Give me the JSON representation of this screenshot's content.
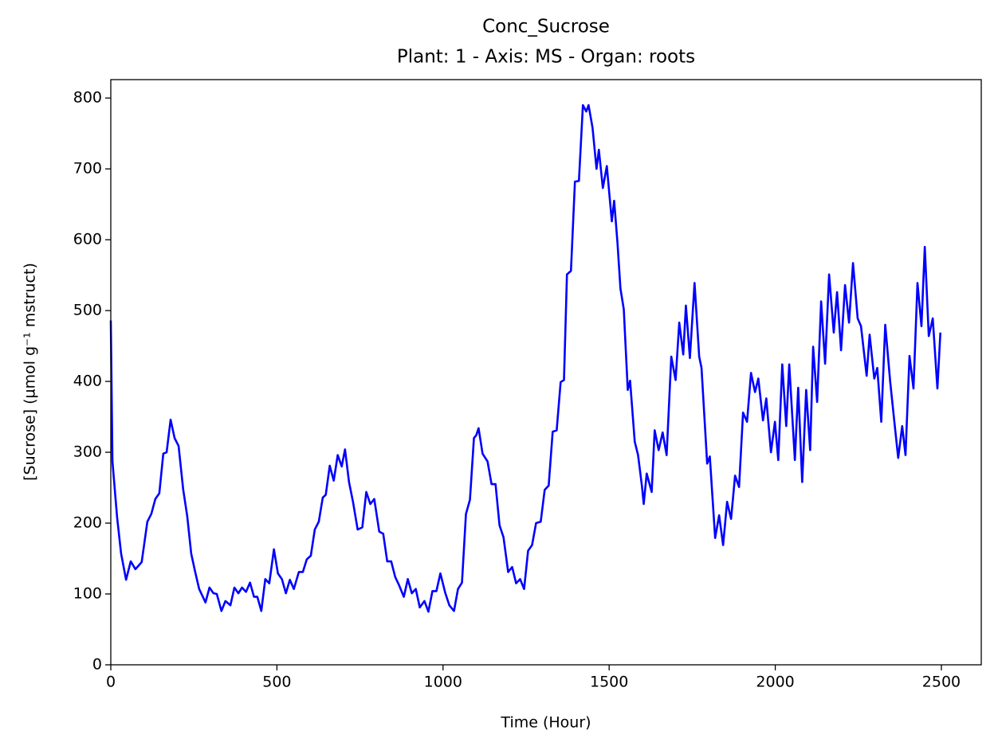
{
  "chart_data": {
    "type": "line",
    "title": "Conc_Sucrose",
    "subtitle": "Plant: 1 - Axis: MS - Organ: roots",
    "x_label": "Time (Hour)",
    "y_label": "[Sucrose] (µmol g⁻¹ mstruct)",
    "x": [
      0,
      5,
      19,
      31,
      46,
      60,
      74,
      93,
      110,
      122,
      134,
      146,
      158,
      168,
      180,
      192,
      204,
      218,
      230,
      242,
      254,
      266,
      285,
      297,
      309,
      319,
      333,
      345,
      360,
      372,
      384,
      395,
      407,
      419,
      431,
      441,
      453,
      465,
      477,
      491,
      503,
      515,
      527,
      539,
      551,
      566,
      578,
      590,
      602,
      614,
      626,
      638,
      647,
      659,
      671,
      683,
      695,
      705,
      717,
      729,
      743,
      757,
      769,
      781,
      793,
      808,
      820,
      832,
      844,
      856,
      868,
      882,
      894,
      906,
      918,
      930,
      944,
      956,
      968,
      980,
      992,
      1007,
      1019,
      1033,
      1045,
      1057,
      1069,
      1081,
      1093,
      1100,
      1107,
      1119,
      1134,
      1146,
      1158,
      1170,
      1182,
      1196,
      1208,
      1220,
      1232,
      1244,
      1256,
      1268,
      1280,
      1294,
      1306,
      1318,
      1330,
      1342,
      1354,
      1364,
      1373,
      1385,
      1397,
      1409,
      1421,
      1431,
      1438,
      1450,
      1462,
      1469,
      1481,
      1493,
      1508,
      1515,
      1525,
      1534,
      1544,
      1556,
      1563,
      1577,
      1587,
      1599,
      1604,
      1613,
      1628,
      1637,
      1649,
      1661,
      1673,
      1687,
      1700,
      1711,
      1723,
      1731,
      1743,
      1757,
      1771,
      1778,
      1795,
      1803,
      1819,
      1831,
      1843,
      1855,
      1867,
      1879,
      1891,
      1903,
      1915,
      1927,
      1939,
      1949,
      1963,
      1973,
      1987,
      1999,
      2009,
      2021,
      2033,
      2042,
      2059,
      2069,
      2081,
      2093,
      2105,
      2114,
      2126,
      2138,
      2150,
      2162,
      2176,
      2186,
      2198,
      2210,
      2222,
      2234,
      2248,
      2258,
      2275,
      2284,
      2298,
      2307,
      2319,
      2331,
      2346,
      2358,
      2370,
      2382,
      2392,
      2404,
      2416,
      2428,
      2440,
      2450,
      2462,
      2474,
      2488,
      2497
    ],
    "series": [
      {
        "name": "Conc_Sucrose",
        "color": "#0000ff",
        "values": [
          486,
          287,
          208,
          157,
          120,
          146,
          135,
          145,
          202,
          213,
          234,
          242,
          298,
          300,
          346,
          320,
          309,
          247,
          210,
          157,
          131,
          107,
          88,
          109,
          101,
          100,
          76,
          90,
          84,
          109,
          101,
          109,
          103,
          116,
          96,
          96,
          76,
          121,
          115,
          163,
          129,
          121,
          101,
          120,
          107,
          131,
          131,
          149,
          154,
          191,
          202,
          236,
          240,
          281,
          260,
          296,
          280,
          304,
          258,
          230,
          191,
          194,
          244,
          227,
          234,
          188,
          185,
          146,
          146,
          124,
          112,
          96,
          121,
          101,
          107,
          81,
          90,
          75,
          104,
          104,
          129,
          101,
          84,
          76,
          107,
          116,
          213,
          233,
          320,
          324,
          334,
          298,
          287,
          255,
          255,
          197,
          180,
          131,
          138,
          115,
          121,
          107,
          161,
          169,
          200,
          202,
          247,
          253,
          329,
          331,
          399,
          402,
          551,
          556,
          682,
          683,
          790,
          781,
          790,
          758,
          700,
          727,
          673,
          704,
          626,
          655,
          596,
          531,
          502,
          388,
          401,
          315,
          296,
          251,
          227,
          270,
          244,
          331,
          303,
          328,
          296,
          435,
          402,
          483,
          438,
          507,
          433,
          539,
          435,
          419,
          284,
          294,
          179,
          211,
          169,
          230,
          206,
          267,
          251,
          356,
          343,
          412,
          385,
          404,
          345,
          376,
          300,
          343,
          289,
          424,
          337,
          424,
          289,
          391,
          258,
          388,
          303,
          449,
          371,
          513,
          425,
          551,
          469,
          526,
          444,
          536,
          483,
          567,
          489,
          478,
          408,
          466,
          404,
          419,
          343,
          480,
          399,
          345,
          292,
          337,
          296,
          436,
          390,
          539,
          478,
          590,
          464,
          489,
          390,
          469
        ]
      }
    ],
    "xlim": [
      0,
      2620
    ],
    "xticks": [
      0,
      500,
      1000,
      1500,
      2000,
      2500
    ],
    "ylim": [
      0,
      826
    ],
    "yticks": [
      0,
      100,
      200,
      300,
      400,
      500,
      600,
      700,
      800
    ],
    "grid": false
  }
}
